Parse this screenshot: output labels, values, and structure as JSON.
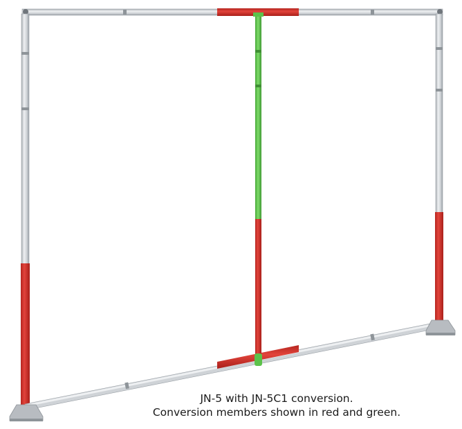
{
  "caption": {
    "line1": "JN-5 with JN-5C1 conversion.",
    "line2": "Conversion members shown in red and green."
  },
  "colors": {
    "frame": "#cfd3d7",
    "frame_edge": "#9aa0a6",
    "conversion_red": "#d6322b",
    "conversion_green": "#5cc24a",
    "feet": "#b8bcc1",
    "caption_text": "#1a1a1a"
  },
  "parts": [
    {
      "name": "top-crossbar",
      "material": "silver"
    },
    {
      "name": "top-crossbar-center",
      "material": "red"
    },
    {
      "name": "left-upright",
      "material": "silver"
    },
    {
      "name": "left-upright-lower",
      "material": "red"
    },
    {
      "name": "right-upright",
      "material": "silver"
    },
    {
      "name": "right-upright-lower",
      "material": "red"
    },
    {
      "name": "center-pole-upper",
      "material": "green"
    },
    {
      "name": "center-pole-lower",
      "material": "red"
    },
    {
      "name": "bottom-crossbar",
      "material": "silver"
    },
    {
      "name": "bottom-crossbar-center",
      "material": "red"
    },
    {
      "name": "left-foot",
      "material": "silver"
    },
    {
      "name": "right-foot",
      "material": "silver"
    }
  ]
}
